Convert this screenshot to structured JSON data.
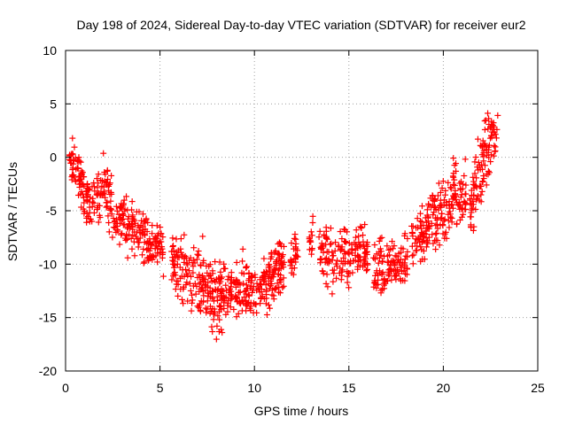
{
  "chart_data": {
    "type": "scatter",
    "title": "Day 198 of 2024, Sidereal Day-to-day VTEC variation (SDTVAR) for receiver eur2",
    "xlabel": "GPS time / hours",
    "ylabel": "SDTVAR / TECUs",
    "xlim": [
      0,
      25
    ],
    "ylim": [
      -20,
      10
    ],
    "xticks": [
      0,
      5,
      10,
      15,
      20,
      25
    ],
    "xtick_labels": [
      "0",
      "5",
      "10",
      "15",
      "20",
      "25"
    ],
    "yticks": [
      -20,
      -15,
      -10,
      -5,
      0,
      5,
      10
    ],
    "ytick_labels": [
      "-20",
      "-15",
      "-10",
      "-5",
      "0",
      "5",
      "10"
    ],
    "grid": true,
    "marker": "plus",
    "color": "#ff0000",
    "series": [
      {
        "name": "SDTVAR",
        "envelope": {
          "x": [
            0.2,
            0.5,
            0.8,
            1.0,
            1.5,
            2.0,
            2.3,
            2.6,
            3.0,
            3.5,
            4.0,
            4.5,
            5.0,
            5.5,
            6.0,
            6.5,
            7.0,
            7.5,
            8.0,
            8.5,
            9.0,
            9.5,
            10.0,
            10.5,
            11.0,
            11.5,
            12.0,
            12.5,
            13.0,
            13.5,
            14.0,
            14.5,
            15.0,
            15.5,
            16.0,
            16.5,
            17.0,
            17.5,
            18.0,
            18.5,
            19.0,
            19.5,
            20.0,
            20.5,
            21.0,
            21.5,
            22.0,
            22.5,
            22.9
          ],
          "y": [
            0.5,
            -1.0,
            -2.5,
            -4.0,
            -4.5,
            -2.0,
            -3.5,
            -5.5,
            -5.5,
            -6.5,
            -7.5,
            -8.0,
            -8.5,
            -9.5,
            -10.5,
            -11.0,
            -11.5,
            -12.5,
            -13.0,
            -12.5,
            -12.0,
            -12.5,
            -12.5,
            -12.0,
            -11.0,
            -10.0,
            -9.0,
            -8.0,
            -7.0,
            -8.5,
            -9.0,
            -9.5,
            -9.5,
            -8.5,
            -9.0,
            -10.5,
            -10.5,
            -10.0,
            -9.5,
            -8.5,
            -7.0,
            -6.0,
            -5.0,
            -3.5,
            -3.5,
            -4.5,
            -1.0,
            2.0,
            2.5
          ],
          "spread": [
            1.5,
            2.0,
            2.2,
            2.0,
            2.2,
            2.6,
            2.6,
            2.0,
            2.2,
            2.2,
            2.0,
            2.0,
            1.5,
            2.0,
            2.5,
            3.0,
            3.0,
            3.0,
            2.5,
            2.2,
            2.5,
            2.5,
            2.0,
            2.0,
            2.2,
            2.2,
            1.8,
            1.8,
            2.0,
            2.2,
            2.5,
            2.2,
            2.0,
            2.0,
            2.2,
            2.2,
            2.2,
            2.2,
            2.2,
            2.5,
            2.5,
            2.8,
            3.0,
            2.5,
            2.5,
            2.5,
            3.0,
            2.5,
            2.5
          ]
        },
        "gaps_hours": [
          [
            5.2,
            5.6
          ],
          [
            11.6,
            11.9
          ],
          [
            12.3,
            12.9
          ],
          [
            13.1,
            13.4
          ],
          [
            16.0,
            16.3
          ],
          [
            18.1,
            18.3
          ],
          [
            21.2,
            21.4
          ]
        ],
        "point_count": 1400
      }
    ]
  }
}
